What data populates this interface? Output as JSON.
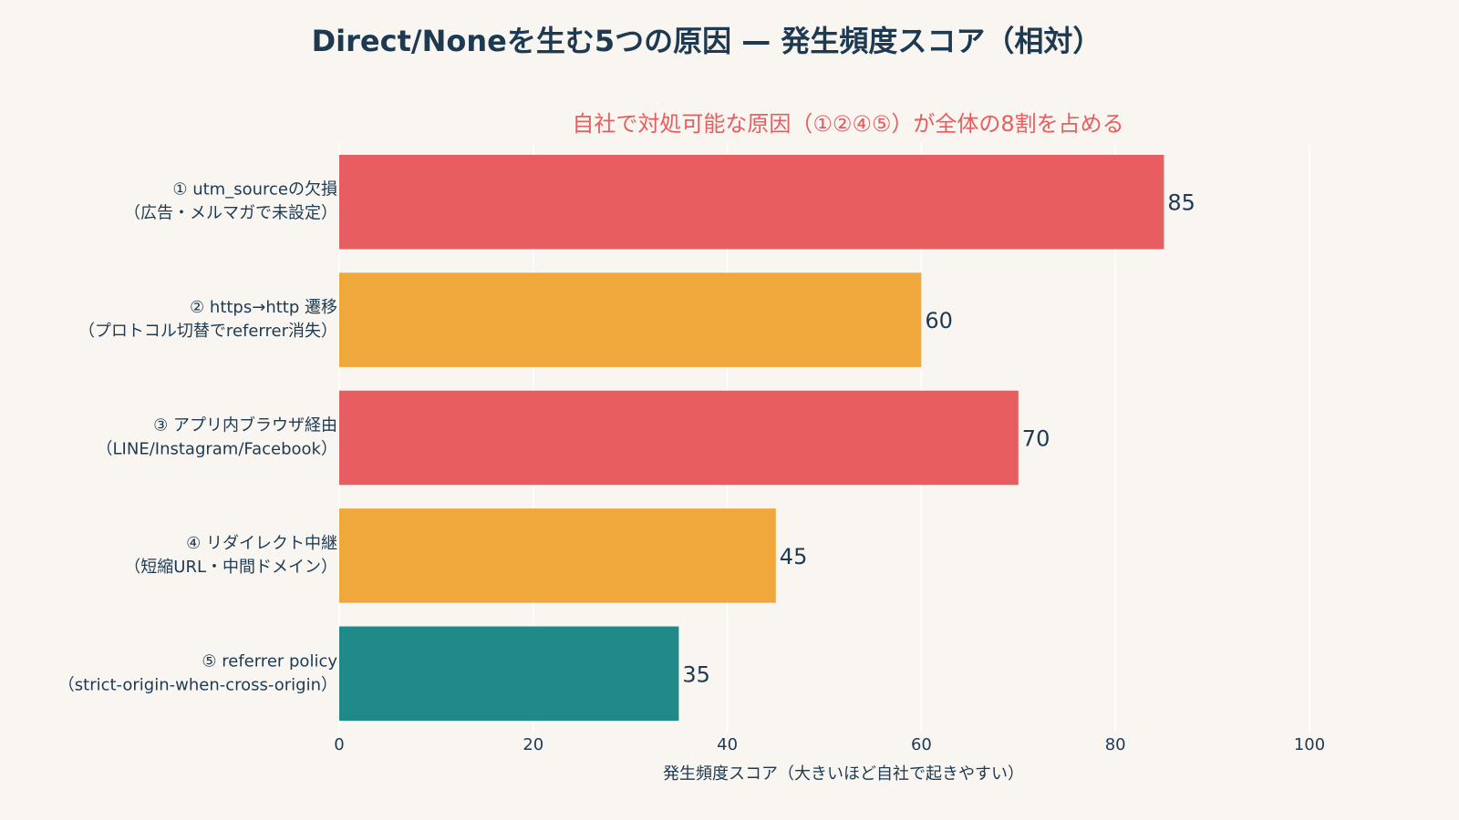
{
  "chart_data": {
    "type": "hbar",
    "title": "Direct/Noneを生む5つの原因 — 発生頻度スコア（相対）",
    "annotation": "自社で対処可能な原因（①②④⑤）が全体の8割を占める",
    "x_label": "発生頻度スコア（大きいほど自社で起きやすい）",
    "categories": [
      [
        "① utm_sourceの欠損",
        "（広告・メルマガで未設定）"
      ],
      [
        "② https→http 遷移",
        "（プロトコル切替でreferrer消失）"
      ],
      [
        "③ アプリ内ブラウザ経由",
        "（LINE/Instagram/Facebook）"
      ],
      [
        "④ リダイレクト中継",
        "（短縮URL・中間ドメイン）"
      ],
      [
        "⑤ referrer policy",
        "（strict-origin-when-cross-origin）"
      ]
    ],
    "values": [
      85,
      60,
      70,
      45,
      35
    ],
    "colors": [
      "#e85d5f",
      "#f0a83c",
      "#e85d5f",
      "#f0a83c",
      "#1f8a87"
    ],
    "xlim": [
      0,
      100
    ],
    "xticks": [
      0,
      20,
      40,
      60,
      80,
      100
    ],
    "grid": true
  }
}
